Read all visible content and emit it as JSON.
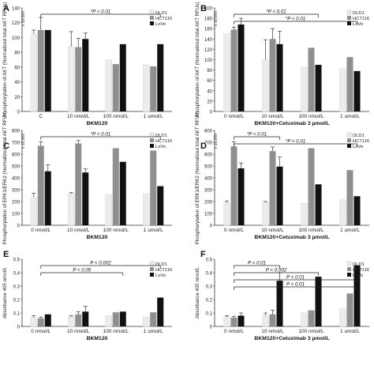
{
  "colors": {
    "DLD1": "#ececec",
    "HCT116": "#8f8f8f",
    "LoVo": "#111111",
    "axis": "#333333"
  },
  "chart_data": [
    {
      "panel": "A",
      "type": "bar",
      "categories": [
        "C",
        "10 nmol/L",
        "100 nmol/L",
        "1 umol/L"
      ],
      "series": [
        {
          "name": "DLD1",
          "values": [
            105,
            88,
            70,
            63
          ],
          "errors": [
            5,
            20,
            0,
            0
          ]
        },
        {
          "name": "HCT116",
          "values": [
            110,
            87,
            64,
            61
          ],
          "errors": [
            17,
            12,
            0,
            0
          ]
        },
        {
          "name": "LoVo",
          "values": [
            110,
            98,
            91,
            91
          ],
          "errors": [
            0,
            8,
            0,
            0
          ]
        }
      ],
      "ylim": [
        0,
        140
      ],
      "yticks": [
        "0",
        "20",
        "40",
        "60",
        "80",
        "100",
        "120",
        "140"
      ],
      "ylabel": "Phosphorylation of AKT (Normalized total AKT RFUs)",
      "yscale_note": "x 10,000",
      "xlabel": "BKM120",
      "annotations": [
        {
          "text": "*P < 0.01",
          "from": 0,
          "to": 3
        }
      ]
    },
    {
      "panel": "B",
      "type": "bar",
      "categories": [
        "0 nmol/L",
        "10 nmol/L",
        "100 nmol/L",
        "1 umol/L"
      ],
      "series": [
        {
          "name": "DLD1",
          "values": [
            150,
            100,
            85,
            82
          ],
          "errors": [
            0,
            38,
            0,
            0
          ]
        },
        {
          "name": "HCT116",
          "values": [
            158,
            140,
            123,
            105
          ],
          "errors": [
            5,
            20,
            0,
            0
          ]
        },
        {
          "name": "LoVo",
          "values": [
            168,
            130,
            90,
            78
          ],
          "errors": [
            12,
            25,
            0,
            0
          ]
        }
      ],
      "ylim": [
        0,
        200
      ],
      "yticks": [
        "0",
        "20",
        "40",
        "60",
        "80",
        "100",
        "120",
        "140",
        "160",
        "180",
        "200"
      ],
      "ylabel": "Phosphorylation of AKT (Normalized total AKT RFUs)",
      "yscale_note": "x 10,000",
      "xlabel": "BKM120+Cetuximab 3 µmol/L",
      "annotations": [
        {
          "text": "*P < 0.01",
          "from": 0,
          "to": 2
        },
        {
          "text": "*P < 0.01",
          "from": 0,
          "to": 3
        }
      ]
    },
    {
      "panel": "C",
      "type": "bar",
      "categories": [
        "0 nmol/L",
        "10 nmol/L",
        "100 nmol/L",
        "1 umol/L"
      ],
      "series": [
        {
          "name": "DLD1",
          "values": [
            240,
            265,
            260,
            265
          ],
          "errors": [
            30,
            10,
            0,
            0
          ]
        },
        {
          "name": "HCT116",
          "values": [
            670,
            690,
            650,
            630
          ],
          "errors": [
            35,
            25,
            0,
            0
          ]
        },
        {
          "name": "LoVo",
          "values": [
            455,
            445,
            535,
            330
          ],
          "errors": [
            55,
            30,
            0,
            0
          ]
        }
      ],
      "ylim": [
        0,
        800
      ],
      "yticks": [
        "0",
        "100",
        "200",
        "300",
        "400",
        "500",
        "600",
        "700",
        "800"
      ],
      "ylabel": "Phosphorylation of ERK1/ERK2 (Normalized total AKT RFUs)",
      "yscale_note": "x 10,000",
      "xlabel": "BKM120",
      "annotations": [
        {
          "text": "*P < 0.01",
          "from": 0,
          "to": 3
        }
      ]
    },
    {
      "panel": "D",
      "type": "bar",
      "categories": [
        "0 nmol/L",
        "10 nmol/L",
        "100 nmol/L",
        "1 umol/L"
      ],
      "series": [
        {
          "name": "DLD1",
          "values": [
            190,
            195,
            185,
            215
          ],
          "errors": [
            15,
            5,
            0,
            0
          ]
        },
        {
          "name": "HCT116",
          "values": [
            665,
            625,
            650,
            465
          ],
          "errors": [
            40,
            35,
            0,
            0
          ]
        },
        {
          "name": "LoVo",
          "values": [
            480,
            495,
            345,
            245
          ],
          "errors": [
            45,
            80,
            0,
            0
          ]
        }
      ],
      "ylim": [
        0,
        800
      ],
      "yticks": [
        "0",
        "100",
        "200",
        "300",
        "400",
        "500",
        "600",
        "700",
        "800"
      ],
      "ylabel": "Phosphorylation of ERK1/ERK2 (Normalized total AKT RFUs)",
      "yscale_note": "x 10,000",
      "xlabel": "BKM120+Cetuximab 3 µmol/L",
      "annotations": [
        {
          "text": "*P < 0.01",
          "from": 0,
          "to": 1
        },
        {
          "text": "*P < 0.01",
          "from": 0,
          "to": 3
        }
      ]
    },
    {
      "panel": "E",
      "type": "bar",
      "categories": [
        "0 nmol/L",
        "10 nmol/L",
        "100 nmol/L",
        "1 umol/L"
      ],
      "series": [
        {
          "name": "DLD1",
          "values": [
            0.065,
            0.075,
            0.08,
            0.07
          ],
          "errors": [
            0.015,
            0.005,
            0,
            0
          ]
        },
        {
          "name": "HCT116",
          "values": [
            0.06,
            0.09,
            0.105,
            0.105
          ],
          "errors": [
            0.01,
            0.02,
            0,
            0
          ]
        },
        {
          "name": "LoVo",
          "values": [
            0.09,
            0.11,
            0.11,
            0.215
          ],
          "errors": [
            0,
            0.04,
            0,
            0
          ]
        }
      ],
      "ylim": [
        0,
        0.5
      ],
      "yticks": [
        "0",
        "0.1",
        "0.2",
        "0.3",
        "0.4",
        "0.5"
      ],
      "ylabel": "Absorbance 405 nmol/L",
      "xlabel": "BKM120",
      "annotations": [
        {
          "text": "P < 0.002",
          "from": 0,
          "to": 3
        },
        {
          "text": "P < 0.05",
          "from": 0,
          "to": 2
        }
      ]
    },
    {
      "panel": "F",
      "type": "bar",
      "categories": [
        "0 nmol/L",
        "10 nmol/L",
        "100 nmol/L",
        "1 umol/L"
      ],
      "series": [
        {
          "name": "DLD1",
          "values": [
            0.07,
            0.08,
            0.1,
            0.13
          ],
          "errors": [
            0.01,
            0.02,
            0,
            0
          ]
        },
        {
          "name": "HCT116",
          "values": [
            0.065,
            0.09,
            0.12,
            0.245
          ],
          "errors": [
            0.01,
            0.03,
            0,
            0
          ]
        },
        {
          "name": "LoVo",
          "values": [
            0.08,
            0.34,
            0.37,
            0.455
          ],
          "errors": [
            0.02,
            0.06,
            0,
            0
          ]
        }
      ],
      "ylim": [
        0,
        0.5
      ],
      "yticks": [
        "0",
        "0.1",
        "0.2",
        "0.3",
        "0.4",
        "0.5"
      ],
      "ylabel": "Absorbance 405 nmol/L",
      "xlabel": "BKM120+Cetuximab 3 µmol/L",
      "annotations": [
        {
          "text": "P < 0.01",
          "from": 0,
          "to": 1
        },
        {
          "text": "P < 0.002",
          "from": 0,
          "to": 2
        },
        {
          "text": "P < 0.01",
          "from": 0,
          "to": 3
        },
        {
          "text": "P < 0.01",
          "from": 0,
          "to": 3
        }
      ]
    }
  ]
}
